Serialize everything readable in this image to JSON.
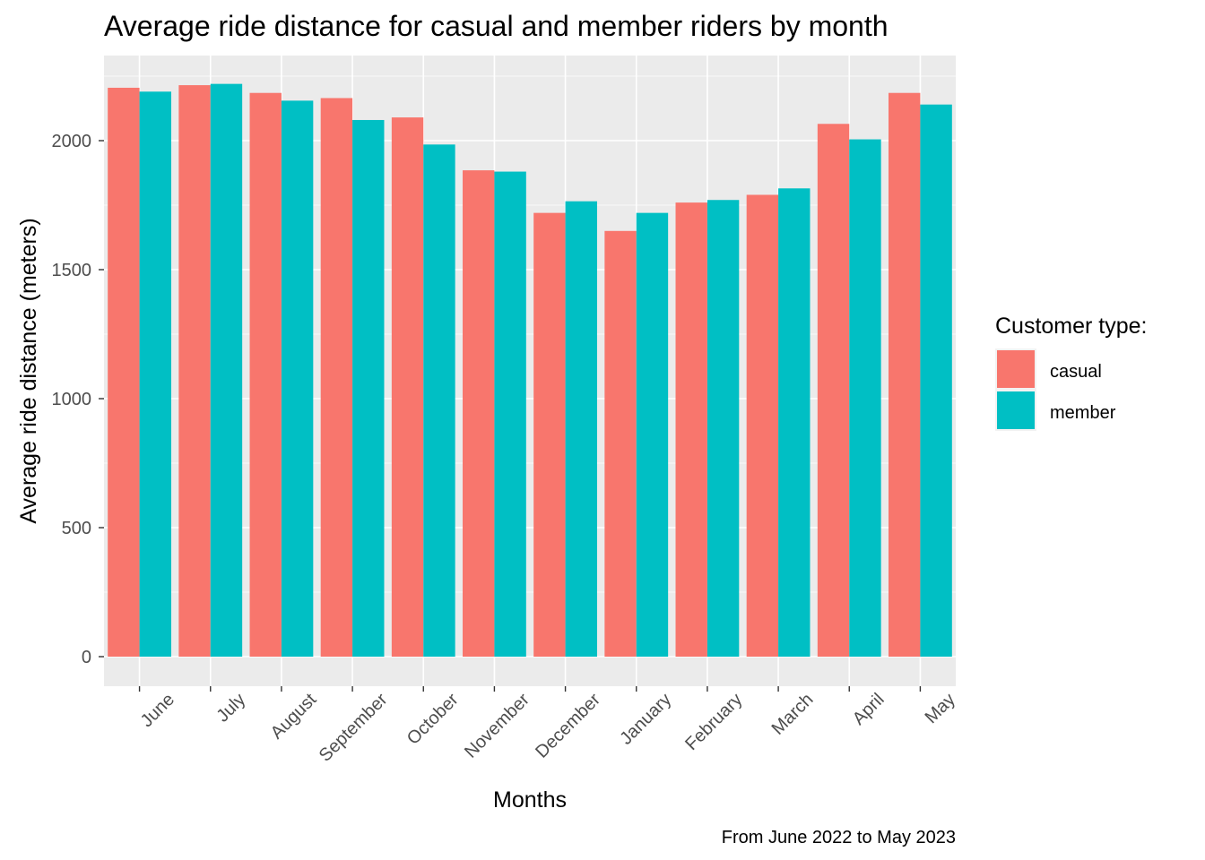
{
  "chart_data": {
    "type": "bar",
    "title": "Average ride distance for casual and member riders by month",
    "xlabel": "Months",
    "ylabel": "Average ride distance (meters)",
    "caption": "From June 2022 to May 2023",
    "categories": [
      "June",
      "July",
      "August",
      "September",
      "October",
      "November",
      "December",
      "January",
      "February",
      "March",
      "April",
      "May"
    ],
    "series": [
      {
        "name": "casual",
        "color": "#F8766D",
        "values": [
          2205,
          2215,
          2185,
          2165,
          2090,
          1885,
          1720,
          1650,
          1760,
          1790,
          2065,
          2185
        ]
      },
      {
        "name": "member",
        "color": "#00BFC4",
        "values": [
          2190,
          2220,
          2155,
          2080,
          1985,
          1880,
          1765,
          1720,
          1770,
          1815,
          2005,
          2140
        ]
      }
    ],
    "ylim": [
      0,
      2350
    ],
    "yticks": [
      0,
      500,
      1000,
      1500,
      2000
    ],
    "legend": {
      "title": "Customer type:",
      "position": "right"
    },
    "grid": true,
    "panel_background": "#EBEBEB"
  }
}
